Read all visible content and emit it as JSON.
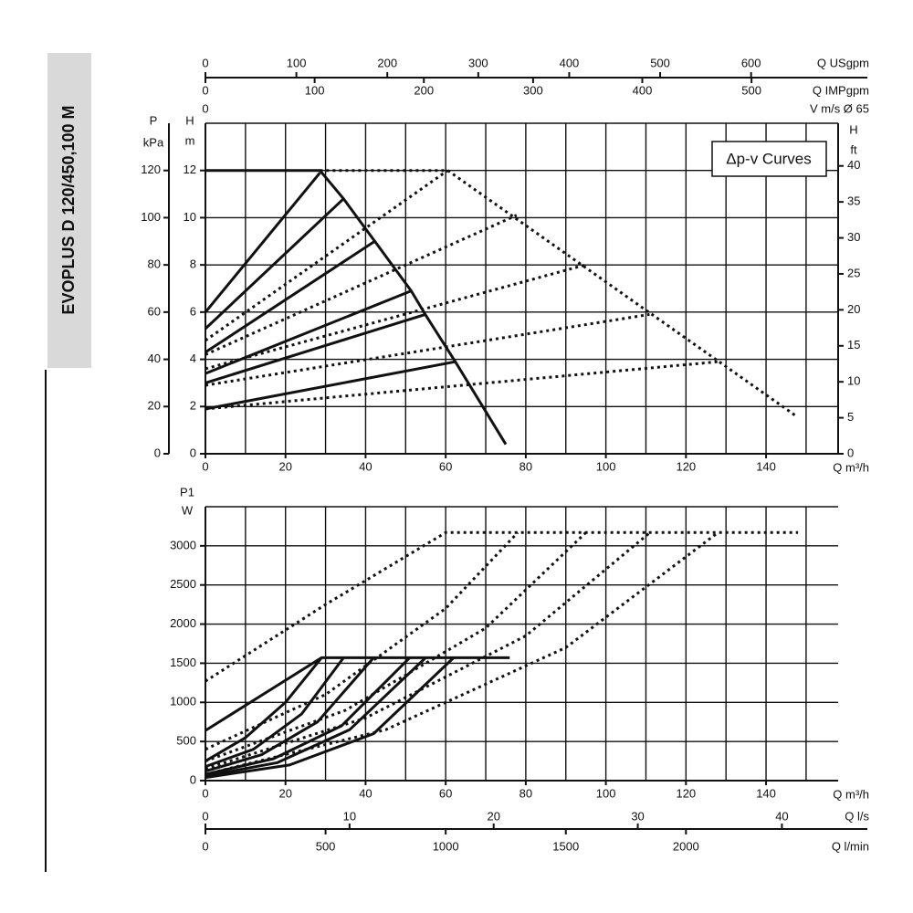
{
  "side_label": "EVOPLUS D 120/450,100 M",
  "chart_data": [
    {
      "type": "line",
      "xlabel": "Q m³/h",
      "ylabel": [
        "H",
        "m"
      ],
      "xlim": [
        0,
        158
      ],
      "xticks": [
        0,
        20,
        40,
        60,
        80,
        100,
        120,
        140
      ],
      "xgrid": [
        0,
        10,
        20,
        30,
        40,
        50,
        60,
        70,
        80,
        90,
        100,
        110,
        120,
        130,
        140,
        150
      ],
      "ylim": [
        0,
        14
      ],
      "yticks": [
        0,
        2,
        4,
        6,
        8,
        10,
        12
      ],
      "ygrid": [
        0,
        2,
        4,
        6,
        8,
        10,
        12,
        14
      ],
      "extra_y_axes": [
        {
          "label": [
            "P",
            "kPa"
          ],
          "side": "left",
          "ylim": [
            0,
            140
          ],
          "yticks": [
            0,
            20,
            40,
            60,
            80,
            100,
            120
          ]
        },
        {
          "label": [
            "H",
            "ft"
          ],
          "side": "right",
          "ylim": [
            0,
            45.93
          ],
          "yticks": [
            0,
            5,
            10,
            15,
            20,
            25,
            30,
            35,
            40
          ]
        }
      ],
      "extra_x_axes": [
        {
          "label": "Q USgpm",
          "xlim": [
            0,
            695.7
          ],
          "xticks": [
            0,
            100,
            200,
            300,
            400,
            500,
            600
          ]
        },
        {
          "label": "Q IMPgpm",
          "xlim": [
            0,
            579.3
          ],
          "xticks": [
            0,
            100,
            200,
            300,
            400,
            500
          ]
        },
        {
          "label": "V m/s Ø 65",
          "xlim": [
            0,
            13.2
          ],
          "xticks": [
            0
          ]
        }
      ],
      "annotation": "Δp-v Curves",
      "series": [
        {
          "style": "solid",
          "color": "#111111",
          "x": [
            0,
            28.6,
            34.5,
            42.3,
            51.4,
            54.9,
            62.4,
            75
          ],
          "values": [
            12,
            12,
            10.8,
            9.0,
            6.9,
            5.9,
            3.9,
            0.4
          ]
        },
        {
          "style": "solid",
          "color": "#111111",
          "x": [
            0,
            28.6
          ],
          "values": [
            6.0,
            11.9
          ]
        },
        {
          "style": "solid",
          "color": "#111111",
          "x": [
            0,
            34.5
          ],
          "values": [
            5.3,
            10.8
          ]
        },
        {
          "style": "solid",
          "color": "#111111",
          "x": [
            0,
            42.3
          ],
          "values": [
            4.3,
            9.0
          ]
        },
        {
          "style": "solid",
          "color": "#111111",
          "x": [
            0,
            51.4
          ],
          "values": [
            3.4,
            6.9
          ]
        },
        {
          "style": "solid",
          "color": "#111111",
          "x": [
            0,
            54.9
          ],
          "values": [
            3.0,
            5.9
          ]
        },
        {
          "style": "solid",
          "color": "#111111",
          "x": [
            0,
            62.4
          ],
          "values": [
            1.9,
            3.9
          ]
        },
        {
          "style": "dotted",
          "color": "#111111",
          "x": [
            28.6,
            60.5,
            147.5
          ],
          "values": [
            12,
            12,
            1.6
          ]
        },
        {
          "style": "dotted",
          "color": "#111111",
          "x": [
            0,
            60.5
          ],
          "values": [
            4.8,
            12
          ]
        },
        {
          "style": "dotted",
          "color": "#111111",
          "x": [
            0,
            77.7
          ],
          "values": [
            4.2,
            10.1
          ]
        },
        {
          "style": "dotted",
          "color": "#111111",
          "x": [
            0,
            94.9
          ],
          "values": [
            3.6,
            8.0
          ]
        },
        {
          "style": "dotted",
          "color": "#111111",
          "x": [
            0,
            110.9
          ],
          "values": [
            2.9,
            5.9
          ]
        },
        {
          "style": "dotted",
          "color": "#111111",
          "x": [
            0,
            128
          ],
          "values": [
            1.9,
            3.9
          ]
        }
      ]
    },
    {
      "type": "line",
      "xlabel": "Q m³/h",
      "ylabel": [
        "P1",
        "W"
      ],
      "xlim": [
        0,
        158
      ],
      "xticks": [
        0,
        20,
        40,
        60,
        80,
        100,
        120,
        140
      ],
      "xgrid": [
        0,
        10,
        20,
        30,
        40,
        50,
        60,
        70,
        80,
        90,
        100,
        110,
        120,
        130,
        140,
        150
      ],
      "ylim": [
        0,
        3500
      ],
      "yticks": [
        0,
        500,
        1000,
        1500,
        2000,
        2500,
        3000
      ],
      "ygrid": [
        0,
        500,
        1000,
        1500,
        2000,
        2500,
        3000,
        3500
      ],
      "extra_y_axes": [],
      "extra_x_axes": [
        {
          "label": "Q l/s",
          "xlim": [
            0,
            43.9
          ],
          "xticks": [
            0,
            10,
            20,
            30,
            40
          ]
        },
        {
          "label": "Q l/min",
          "xlim": [
            0,
            2633.3
          ],
          "xticks": [
            0,
            500,
            1000,
            1500,
            2000
          ]
        }
      ],
      "series": [
        {
          "style": "solid",
          "color": "#111111",
          "x": [
            0,
            29,
            76
          ],
          "values": [
            640,
            1570,
            1570
          ]
        },
        {
          "style": "solid",
          "color": "#111111",
          "x": [
            0,
            10,
            20,
            29
          ],
          "values": [
            250,
            550,
            1000,
            1570
          ]
        },
        {
          "style": "solid",
          "color": "#111111",
          "x": [
            0,
            12,
            24,
            34.5
          ],
          "values": [
            180,
            400,
            850,
            1570
          ]
        },
        {
          "style": "solid",
          "color": "#111111",
          "x": [
            0,
            14,
            28,
            42
          ],
          "values": [
            120,
            330,
            750,
            1570
          ]
        },
        {
          "style": "solid",
          "color": "#111111",
          "x": [
            0,
            17,
            34,
            51
          ],
          "values": [
            80,
            280,
            700,
            1570
          ]
        },
        {
          "style": "solid",
          "color": "#111111",
          "x": [
            0,
            18,
            36,
            55
          ],
          "values": [
            60,
            230,
            650,
            1570
          ]
        },
        {
          "style": "solid",
          "color": "#111111",
          "x": [
            0,
            21,
            42,
            62
          ],
          "values": [
            40,
            200,
            600,
            1570
          ]
        },
        {
          "style": "dotted",
          "color": "#111111",
          "x": [
            0,
            30,
            60,
            148
          ],
          "values": [
            1270,
            2250,
            3170,
            3170
          ]
        },
        {
          "style": "dotted",
          "color": "#111111",
          "x": [
            0,
            30,
            60,
            78
          ],
          "values": [
            400,
            1100,
            2200,
            3170
          ]
        },
        {
          "style": "dotted",
          "color": "#111111",
          "x": [
            0,
            35,
            70,
            95
          ],
          "values": [
            250,
            900,
            1950,
            3170
          ]
        },
        {
          "style": "dotted",
          "color": "#111111",
          "x": [
            0,
            40,
            80,
            111
          ],
          "values": [
            150,
            800,
            1850,
            3170
          ]
        },
        {
          "style": "dotted",
          "color": "#111111",
          "x": [
            0,
            45,
            90,
            128
          ],
          "values": [
            80,
            650,
            1700,
            3170
          ]
        }
      ]
    }
  ]
}
